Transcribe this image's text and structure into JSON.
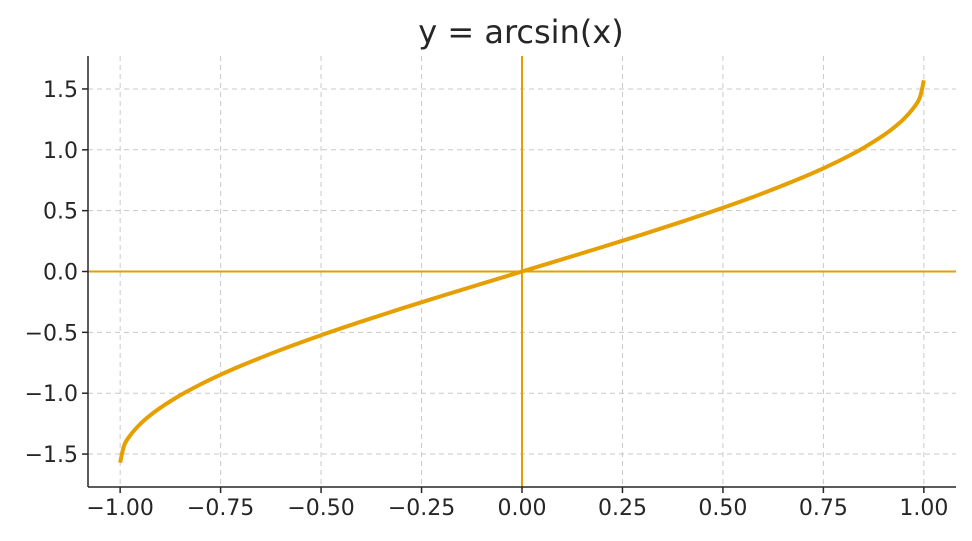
{
  "chart_data": {
    "type": "line",
    "title": "y = arcsin(x)",
    "xlabel": "",
    "ylabel": "",
    "xlim": [
      -1.08,
      1.08
    ],
    "ylim": [
      -1.7708,
      1.7708
    ],
    "xticks": [
      -1.0,
      -0.75,
      -0.5,
      -0.25,
      0.0,
      0.25,
      0.5,
      0.75,
      1.0
    ],
    "xtick_labels": [
      "−1.00",
      "−0.75",
      "−0.50",
      "−0.25",
      "0.00",
      "0.25",
      "0.50",
      "0.75",
      "1.00"
    ],
    "yticks": [
      -1.5,
      -1.0,
      -0.5,
      0.0,
      0.5,
      1.0,
      1.5
    ],
    "ytick_labels": [
      "−1.5",
      "−1.0",
      "−0.5",
      "0.0",
      "0.5",
      "1.0",
      "1.5"
    ],
    "grid": true,
    "zero_lines": true,
    "series": [
      {
        "color": "#E69F00",
        "x": [
          -1.0,
          -0.99,
          -0.975,
          -0.95,
          -0.925,
          -0.9,
          -0.85,
          -0.8,
          -0.75,
          -0.7,
          -0.6,
          -0.5,
          -0.4,
          -0.3,
          -0.2,
          -0.1,
          0.0,
          0.1,
          0.2,
          0.3,
          0.4,
          0.5,
          0.6,
          0.7,
          0.75,
          0.8,
          0.85,
          0.9,
          0.925,
          0.95,
          0.975,
          0.99,
          1.0
        ],
        "y": [
          -1.5708,
          -1.4293,
          -1.3467,
          -1.2532,
          -1.1815,
          -1.1198,
          -1.016,
          -0.9273,
          -0.8481,
          -0.7754,
          -0.6435,
          -0.5236,
          -0.4115,
          -0.3047,
          -0.2014,
          -0.1002,
          0.0,
          0.1002,
          0.2014,
          0.3047,
          0.4115,
          0.5236,
          0.6435,
          0.7754,
          0.8481,
          0.9273,
          1.016,
          1.1198,
          1.1815,
          1.2532,
          1.3467,
          1.4293,
          1.5708
        ]
      }
    ]
  },
  "colors": {
    "series": "#E69F00",
    "zero_line": "#E69F00",
    "grid": "#c8c8c8",
    "axis": "#262626"
  }
}
